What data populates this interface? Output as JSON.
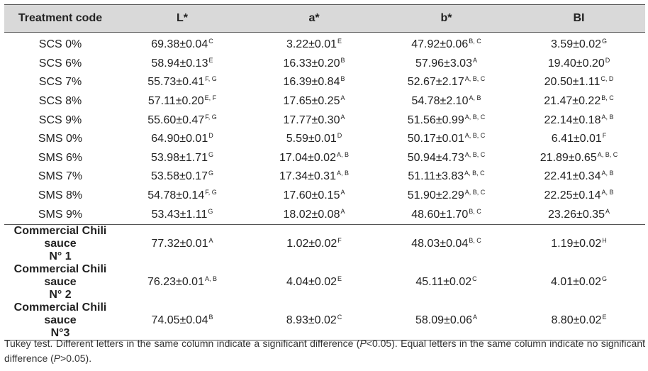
{
  "table": {
    "headers": [
      "Treatment code",
      "L*",
      "a*",
      "b*",
      "BI"
    ],
    "rows": [
      {
        "code": "SCS 0%",
        "L": "69.38±0.04",
        "L_sup": "C",
        "a": "3.22±0.01",
        "a_sup": "E",
        "b": "47.92±0.06",
        "b_sup": "B, C",
        "bi": "3.59±0.02",
        "bi_sup": "G"
      },
      {
        "code": "SCS 6%",
        "L": "58.94±0.13",
        "L_sup": "E",
        "a": "16.33±0.20",
        "a_sup": "B",
        "b": "57.96±3.03",
        "b_sup": "A",
        "bi": "19.40±0.20",
        "bi_sup": "D"
      },
      {
        "code": "SCS 7%",
        "L": "55.73±0.41",
        "L_sup": "F, G",
        "a": "16.39±0.84",
        "a_sup": "B",
        "b": "52.67±2.17",
        "b_sup": "A, B, C",
        "bi": "20.50±1.11",
        "bi_sup": "C, D"
      },
      {
        "code": "SCS 8%",
        "L": "57.11±0.20",
        "L_sup": "E, F",
        "a": "17.65±0.25",
        "a_sup": "A",
        "b": "54.78±2.10",
        "b_sup": "A, B",
        "bi": "21.47±0.22",
        "bi_sup": "B, C"
      },
      {
        "code": "SCS 9%",
        "L": "55.60±0.47",
        "L_sup": "F, G",
        "a": "17.77±0.30",
        "a_sup": "A",
        "b": "51.56±0.99",
        "b_sup": "A, B, C",
        "bi": "22.14±0.18",
        "bi_sup": "A, B"
      },
      {
        "code": "SMS 0%",
        "L": "64.90±0.01",
        "L_sup": "D",
        "a": "5.59±0.01",
        "a_sup": "D",
        "b": "50.17±0.01",
        "b_sup": "A, B, C",
        "bi": "6.41±0.01",
        "bi_sup": "F"
      },
      {
        "code": "SMS 6%",
        "L": "53.98±1.71",
        "L_sup": "G",
        "a": "17.04±0.02",
        "a_sup": "A, B",
        "b": "50.94±4.73",
        "b_sup": "A, B, C",
        "bi": "21.89±0.65",
        "bi_sup": "A, B, C"
      },
      {
        "code": "SMS 7%",
        "L": "53.58±0.17",
        "L_sup": "G",
        "a": "17.34±0.31",
        "a_sup": "A, B",
        "b": "51.11±3.83",
        "b_sup": "A, B, C",
        "bi": "22.41±0.34",
        "bi_sup": "A, B"
      },
      {
        "code": "SMS 8%",
        "L": "54.78±0.14",
        "L_sup": "F, G",
        "a": "17.60±0.15",
        "a_sup": "A",
        "b": "51.90±2.29",
        "b_sup": "A, B, C",
        "bi": "22.25±0.14",
        "bi_sup": "A, B"
      },
      {
        "code": "SMS 9%",
        "L": "53.43±1.11",
        "L_sup": "G",
        "a": "18.02±0.08",
        "a_sup": "A",
        "b": "48.60±1.70",
        "b_sup": "B, C",
        "bi": "23.26±0.35",
        "bi_sup": "A"
      }
    ],
    "commercial": [
      {
        "code_line1": "Commercial Chili sauce",
        "code_line2": "N° 1",
        "L": "77.32±0.01",
        "L_sup": "A",
        "a": "1.02±0.02",
        "a_sup": "F",
        "b": "48.03±0.04",
        "b_sup": "B, C",
        "bi": "1.19±0.02",
        "bi_sup": "H"
      },
      {
        "code_line1": "Commercial Chili sauce",
        "code_line2": "N° 2",
        "L": "76.23±0.01",
        "L_sup": "A, B",
        "a": "4.04±0.02",
        "a_sup": "E",
        "b": "45.11±0.02",
        "b_sup": "C",
        "bi": "4.01±0.02",
        "bi_sup": "G"
      },
      {
        "code_line1": "Commercial Chili sauce",
        "code_line2": "N°3",
        "L": "74.05±0.04",
        "L_sup": "B",
        "a": "8.93±0.02",
        "a_sup": "C",
        "b": "58.09±0.06",
        "b_sup": "A",
        "bi": "8.80±0.02",
        "bi_sup": "E"
      }
    ]
  },
  "footnote": {
    "part1": "Tukey test. Different letters in the same column indicate a significant difference (",
    "p1": "P",
    "part2": "<0.05). Equal letters in the same column indicate no significant difference (",
    "p2": "P",
    "part3": ">0.05)."
  }
}
